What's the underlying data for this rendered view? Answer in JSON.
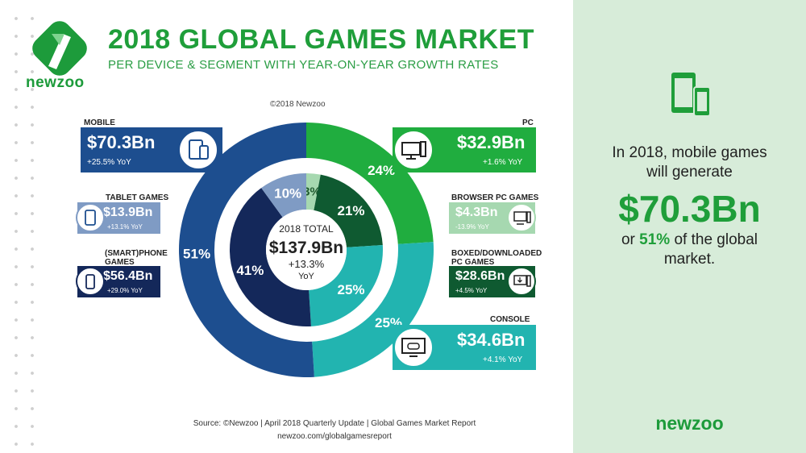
{
  "brand": {
    "name": "newzoo"
  },
  "header": {
    "title": "2018 GLOBAL GAMES MARKET",
    "subtitle": "PER DEVICE & SEGMENT WITH YEAR-ON-YEAR GROWTH RATES",
    "copyright": "©2018 Newzoo"
  },
  "chart_data": {
    "type": "pie",
    "center": {
      "label": "2018 TOTAL",
      "value": "$137.9Bn",
      "growth": "+13.3%",
      "growth_unit": "YoY"
    },
    "outer_ring": {
      "slices": [
        {
          "name": "PC",
          "value": 24,
          "label": "24%",
          "color": "#20ad3f"
        },
        {
          "name": "CONSOLE",
          "value": 25,
          "label": "25%",
          "color": "#22b4b0"
        },
        {
          "name": "MOBILE",
          "value": 51,
          "label": "51%",
          "color": "#1d4e8f"
        }
      ]
    },
    "inner_ring": {
      "slices": [
        {
          "name": "BROWSER PC GAMES",
          "value": 3,
          "label": "3%",
          "color": "#a6d8b0"
        },
        {
          "name": "BOXED/DOWNLOADED PC GAMES",
          "value": 21,
          "label": "21%",
          "color": "#0f5a31"
        },
        {
          "name": "CONSOLE",
          "value": 25,
          "label": "25%",
          "color": "#22b4b0"
        },
        {
          "name": "(SMART)PHONE GAMES",
          "value": 41,
          "label": "41%",
          "color": "#14285a"
        },
        {
          "name": "TABLET GAMES",
          "value": 10,
          "label": "10%",
          "color": "#7f9bc4"
        }
      ]
    }
  },
  "cards": {
    "mobile": {
      "label": "MOBILE",
      "value": "$70.3Bn",
      "yoy": "+25.5% YoY",
      "color": "#1d4e8f"
    },
    "tablet": {
      "label": "TABLET GAMES",
      "value": "$13.9Bn",
      "yoy": "+13.1% YoY",
      "color": "#7f9bc4"
    },
    "phone": {
      "label": "(SMART)PHONE GAMES",
      "value": "$56.4Bn",
      "yoy": "+29.0% YoY",
      "color": "#14285a"
    },
    "pc": {
      "label": "PC",
      "value": "$32.9Bn",
      "yoy": "+1.6% YoY",
      "color": "#20ad3f"
    },
    "browser": {
      "label": "BROWSER PC GAMES",
      "value": "$4.3Bn",
      "yoy": "-13.9% YoY",
      "color": "#a6d8b0"
    },
    "boxed": {
      "label": "BOXED/DOWNLOADED PC GAMES",
      "value": "$28.6Bn",
      "yoy": "+4.5% YoY",
      "color": "#0f5a31"
    },
    "console": {
      "label": "CONSOLE",
      "value": "$34.6Bn",
      "yoy": "+4.1% YoY",
      "color": "#22b4b0"
    }
  },
  "side_panel": {
    "line1": "In 2018, mobile games",
    "line2": "will generate",
    "big_value": "$70.3Bn",
    "line3_prefix": "or ",
    "line3_highlight": "51%",
    "line3_suffix": " of the global",
    "line4": "market.",
    "brand": "newzoo",
    "accent": "#1f9e3a",
    "icon": "tablet-phone-icon"
  },
  "footer": {
    "source": "Source: ©Newzoo | April 2018 Quarterly Update | Global Games Market Report",
    "url": "newzoo.com/globalgamesreport"
  }
}
